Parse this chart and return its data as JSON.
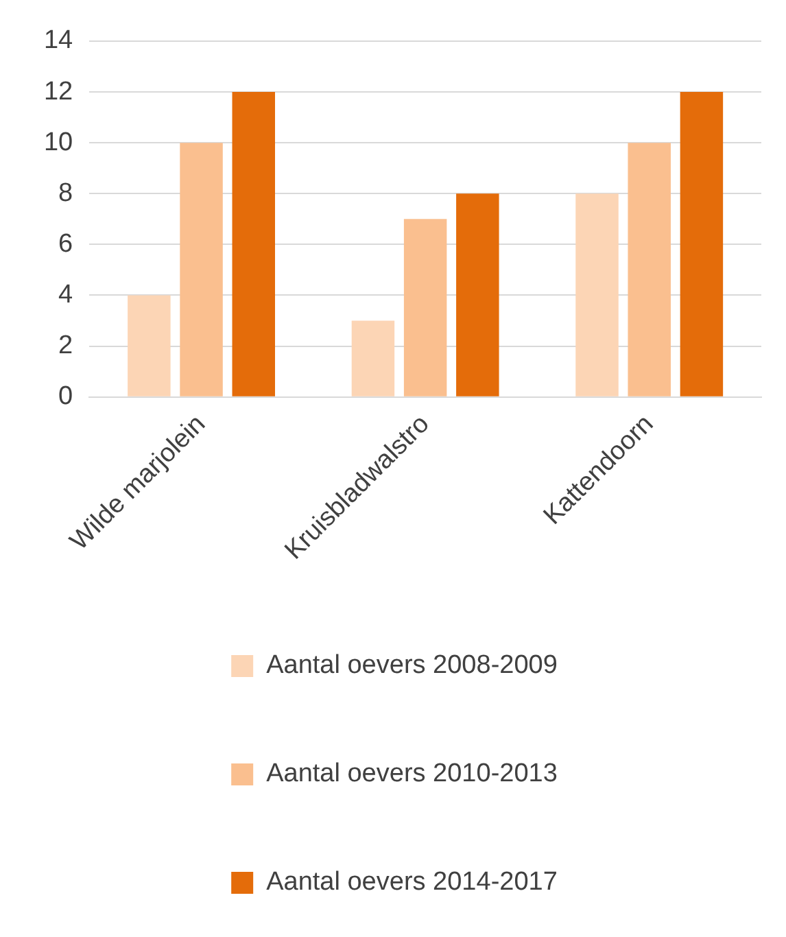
{
  "chart_data": {
    "type": "bar",
    "categories": [
      "Wilde marjolein",
      "Kruisbladwalstro",
      "Kattendoorn"
    ],
    "series": [
      {
        "name": "Aantal oevers 2008-2009",
        "color": "#fcd5b5",
        "values": [
          4,
          3,
          8
        ]
      },
      {
        "name": "Aantal oevers 2010-2013",
        "color": "#fabf8f",
        "values": [
          10,
          7,
          10
        ]
      },
      {
        "name": "Aantal oevers 2014-2017",
        "color": "#e46c0a",
        "values": [
          12,
          8,
          12
        ]
      }
    ],
    "ylim": [
      0,
      14
    ],
    "yticks": [
      0,
      2,
      4,
      6,
      8,
      10,
      12,
      14
    ],
    "grid": "y",
    "legend": "bottom"
  }
}
